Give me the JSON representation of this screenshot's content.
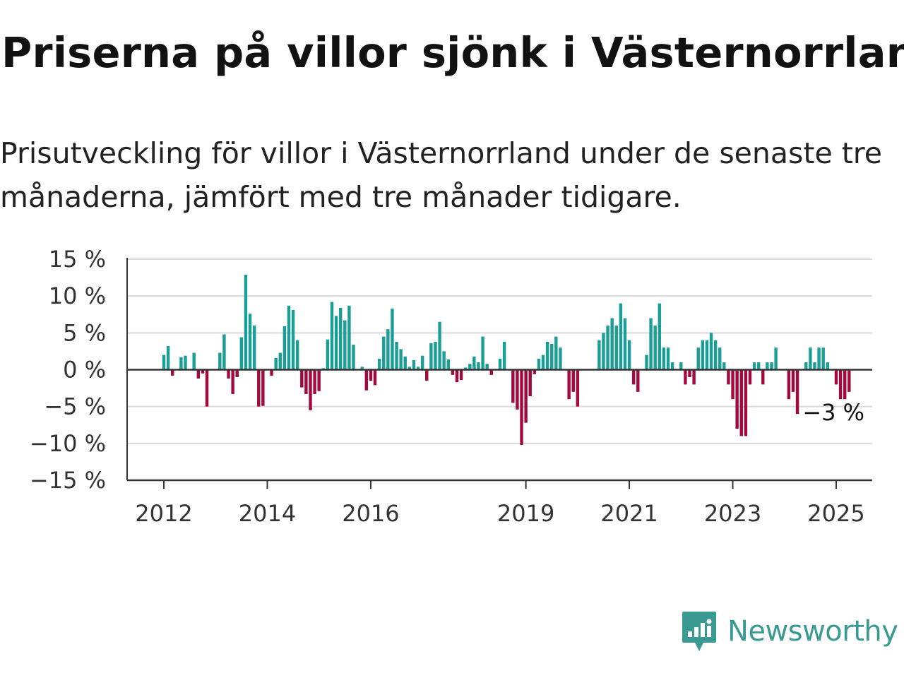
{
  "title": "Priserna på villor sjönk i Västernorrland",
  "subtitle": "Prisutveckling för villor i Västernorrland under de senaste tre månaderna, jämfört med tre månader tidigare.",
  "brand": "Newsworthy",
  "colors": {
    "positive": "#1a9e95",
    "negative": "#a3093c",
    "grid": "#d9d9d9",
    "axis": "#333333",
    "brand": "#3a9a92"
  },
  "chart_data": {
    "type": "bar",
    "ylim": [
      -15,
      15
    ],
    "yticks": [
      15,
      10,
      5,
      0,
      -5,
      -10,
      -15
    ],
    "ytick_labels": [
      "15 %",
      "10 %",
      "5 %",
      "0 %",
      "−5 %",
      "−10 %",
      "−15 %"
    ],
    "xticks": [
      "2012",
      "2014",
      "2016",
      "2019",
      "2021",
      "2023",
      "2025"
    ],
    "start_period": "2011-05",
    "annotation": "−3 %",
    "values": [
      0,
      0,
      0,
      0,
      0,
      0,
      0,
      0,
      2,
      3.2,
      -0.8,
      0,
      1.7,
      1.9,
      0,
      2.3,
      -1.2,
      -0.5,
      -5,
      0,
      0,
      2.3,
      4.8,
      -1.2,
      -3.3,
      -1,
      4.4,
      12.9,
      7.6,
      6,
      -5,
      -4.9,
      0,
      -0.8,
      1.6,
      2.3,
      5.9,
      8.7,
      8.1,
      4,
      -2.4,
      -3.3,
      -5.5,
      -3.3,
      -2.9,
      0.2,
      4.1,
      9.2,
      7.3,
      8.4,
      6.7,
      8.7,
      3.4,
      0,
      0.4,
      -2.8,
      -1.5,
      -2.1,
      1.5,
      4.5,
      5.5,
      8.3,
      3.8,
      2.8,
      1.8,
      0.4,
      1.3,
      0.4,
      1.9,
      -1.5,
      3.6,
      3.8,
      6.5,
      2.5,
      1.4,
      -0.7,
      -1.7,
      -1.4,
      0.3,
      0.8,
      1.8,
      1,
      4.5,
      0.8,
      -0.7,
      0,
      1.5,
      3.8,
      0,
      -4.5,
      -5.4,
      -10.2,
      -7.2,
      -3.6,
      -0.6,
      1.5,
      2,
      3.8,
      3.5,
      4.5,
      3,
      0,
      -4,
      -3,
      -5,
      0,
      0,
      0,
      0,
      4,
      5,
      6,
      7,
      6,
      9,
      7,
      4,
      -2,
      -3,
      0,
      2,
      7,
      6,
      9,
      3,
      3,
      1,
      0,
      1,
      -2,
      -1,
      -2,
      3,
      4,
      4,
      5,
      4,
      3,
      1,
      -2,
      -4,
      -8,
      -9,
      -9,
      -2,
      1,
      1,
      -2,
      1,
      1,
      3,
      0,
      0,
      -4,
      -3,
      -6,
      0,
      1,
      3,
      1,
      3,
      3,
      1,
      0,
      -2,
      -4,
      -4,
      -3
    ]
  }
}
